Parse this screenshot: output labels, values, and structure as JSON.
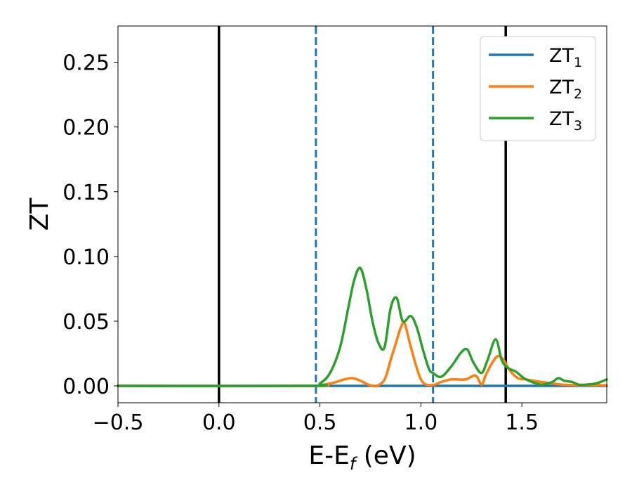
{
  "chart_data": {
    "type": "line",
    "xlabel": "E-E",
    "xlabel_sub": "f",
    "xlabel_unit": " (eV)",
    "ylabel": "ZT",
    "xlim": [
      -0.5,
      1.92
    ],
    "ylim": [
      -0.013,
      0.278
    ],
    "xticks": [
      -0.5,
      0.0,
      0.5,
      1.0,
      1.5
    ],
    "xtick_labels": [
      "−0.5",
      "0.0",
      "0.5",
      "1.0",
      "1.5"
    ],
    "yticks": [
      0.0,
      0.05,
      0.1,
      0.15,
      0.2,
      0.25
    ],
    "ytick_labels": [
      "0.00",
      "0.05",
      "0.10",
      "0.15",
      "0.20",
      "0.25"
    ],
    "grid": false,
    "legend_position": "top-right",
    "vlines": [
      {
        "x": 0.0,
        "color": "#000000",
        "style": "solid"
      },
      {
        "x": 1.42,
        "color": "#000000",
        "style": "solid"
      },
      {
        "x": 0.48,
        "color": "#1f77b4",
        "style": "dashed"
      },
      {
        "x": 1.06,
        "color": "#1f77b4",
        "style": "dashed"
      }
    ],
    "series": [
      {
        "name": "ZT",
        "sub": "1",
        "color": "#1f77b4",
        "x": [
          -0.5,
          0.0,
          0.5,
          1.0,
          1.5,
          1.92
        ],
        "y": [
          0,
          0,
          0,
          0,
          0,
          0
        ]
      },
      {
        "name": "ZT",
        "sub": "2",
        "color": "#ff7f0e",
        "x": [
          -0.5,
          0.45,
          0.52,
          0.58,
          0.62,
          0.66,
          0.7,
          0.74,
          0.78,
          0.82,
          0.85,
          0.88,
          0.9,
          0.92,
          0.95,
          1.0,
          1.05,
          1.1,
          1.15,
          1.22,
          1.27,
          1.3,
          1.32,
          1.35,
          1.38,
          1.41,
          1.44,
          1.48,
          1.52,
          1.6,
          1.7,
          1.8,
          1.92
        ],
        "y": [
          0,
          0,
          0.001,
          0.003,
          0.005,
          0.006,
          0.004,
          0.001,
          0,
          0.005,
          0.02,
          0.035,
          0.045,
          0.048,
          0.03,
          0.005,
          0.0005,
          0.003,
          0.005,
          0.005,
          0.008,
          0.001,
          0.008,
          0.017,
          0.023,
          0.02,
          0.012,
          0.006,
          0.005,
          0.003,
          0.001,
          0.0005,
          0.0005
        ]
      },
      {
        "name": "ZT",
        "sub": "3",
        "color": "#2ca02c",
        "x": [
          -0.5,
          0.45,
          0.5,
          0.55,
          0.6,
          0.64,
          0.67,
          0.7,
          0.73,
          0.76,
          0.79,
          0.82,
          0.85,
          0.88,
          0.91,
          0.95,
          0.98,
          1.01,
          1.04,
          1.06,
          1.1,
          1.15,
          1.2,
          1.23,
          1.26,
          1.3,
          1.33,
          1.37,
          1.4,
          1.43,
          1.47,
          1.51,
          1.55,
          1.6,
          1.65,
          1.68,
          1.71,
          1.75,
          1.78,
          1.82,
          1.87,
          1.92
        ],
        "y": [
          0,
          0,
          0.002,
          0.01,
          0.03,
          0.06,
          0.082,
          0.091,
          0.075,
          0.05,
          0.033,
          0.03,
          0.06,
          0.068,
          0.05,
          0.054,
          0.045,
          0.028,
          0.013,
          0.01,
          0.007,
          0.015,
          0.026,
          0.028,
          0.018,
          0.01,
          0.02,
          0.036,
          0.02,
          0.014,
          0.011,
          0.006,
          0.003,
          0.001,
          0.003,
          0.006,
          0.004,
          0.003,
          0.001,
          0.001,
          0.002,
          0.005
        ]
      }
    ]
  }
}
